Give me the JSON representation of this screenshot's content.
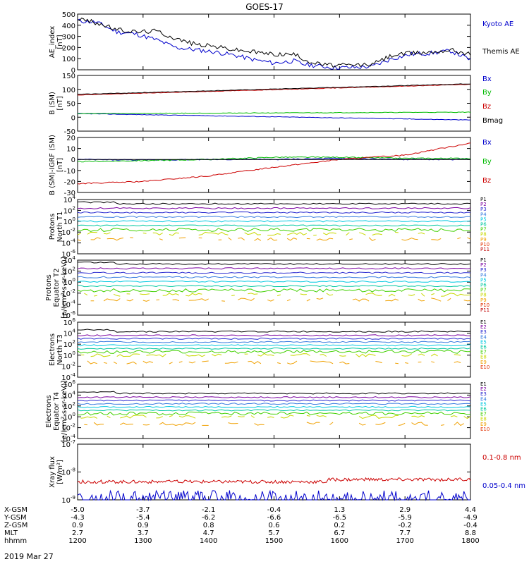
{
  "title": "GOES-17",
  "date_label": "2019 Mar 27",
  "footer_rows": [
    {
      "label": "X-GSM",
      "values": [
        "-5.0",
        "-3.7",
        "-2.1",
        "-0.4",
        "1.3",
        "2.9",
        "4.4"
      ]
    },
    {
      "label": "Y-GSM",
      "values": [
        "-4.3",
        "-5.4",
        "-6.2",
        "-6.6",
        "-6.5",
        "-5.9",
        "-4.9"
      ]
    },
    {
      "label": "Z-GSM",
      "values": [
        "0.9",
        "0.9",
        "0.8",
        "0.6",
        "0.2",
        "-0.2",
        "-0.4"
      ]
    },
    {
      "label": "MLT",
      "values": [
        "2.7",
        "3.7",
        "4.7",
        "5.7",
        "6.7",
        "7.7",
        "8.8"
      ]
    },
    {
      "label": "hhmm",
      "values": [
        "1200",
        "1300",
        "1400",
        "1500",
        "1600",
        "1700",
        "1800"
      ]
    }
  ],
  "colors": {
    "axes": "#000000",
    "black": "#000000",
    "blue": "#0000cc",
    "green": "#00bb00",
    "red": "#cc0000",
    "channels": [
      "#000000",
      "#7a00a0",
      "#2a2ad0",
      "#3a7ee0",
      "#00c8e0",
      "#00c8a0",
      "#40d000",
      "#c8d800",
      "#f0a000",
      "#e03000",
      "#c00000"
    ]
  },
  "chart_data": [
    {
      "id": "ae",
      "type": "line",
      "ylabel": "AE_index\n[nT]",
      "ylim": [
        0,
        500
      ],
      "yticks": [
        0,
        100,
        200,
        300,
        400,
        500
      ],
      "x_range": [
        "1200",
        "1800"
      ],
      "series": [
        {
          "name": "Kyoto AE",
          "color": "blue",
          "x": [
            0,
            30,
            60,
            90,
            120,
            150,
            180,
            210,
            240,
            270,
            300,
            330,
            345,
            360,
            390,
            420,
            450,
            480,
            510,
            540,
            570,
            600
          ],
          "y": [
            440,
            425,
            340,
            320,
            270,
            200,
            180,
            160,
            130,
            90,
            60,
            80,
            50,
            40,
            20,
            20,
            30,
            100,
            140,
            150,
            170,
            90
          ]
        },
        {
          "name": "Themis AE",
          "color": "black",
          "x": [
            0,
            30,
            60,
            90,
            120,
            150,
            180,
            210,
            240,
            270,
            300,
            330,
            345,
            360,
            390,
            420,
            450,
            480,
            510,
            540,
            570,
            600
          ],
          "y": [
            460,
            420,
            360,
            340,
            350,
            280,
            230,
            210,
            180,
            160,
            140,
            140,
            100,
            60,
            40,
            40,
            50,
            130,
            150,
            160,
            180,
            140
          ]
        }
      ]
    },
    {
      "id": "b_sm",
      "type": "line",
      "ylabel": "B (SM)\n[nT]",
      "ylim": [
        -50,
        150
      ],
      "yticks": [
        -50,
        0,
        50,
        100,
        150
      ],
      "series": [
        {
          "name": "Bx",
          "color": "blue",
          "x": [
            0,
            600
          ],
          "y": [
            13,
            -10
          ]
        },
        {
          "name": "By",
          "color": "green",
          "x": [
            0,
            600
          ],
          "y": [
            13,
            18
          ]
        },
        {
          "name": "Bz",
          "color": "red",
          "x": [
            0,
            600
          ],
          "y": [
            80,
            118
          ]
        },
        {
          "name": "Bmag",
          "color": "black",
          "x": [
            0,
            600
          ],
          "y": [
            82,
            120
          ]
        }
      ]
    },
    {
      "id": "b_igrf",
      "type": "line",
      "ylabel": "B (SM)-IGRF (SM)\n[nT]",
      "ylim": [
        -30,
        20
      ],
      "yticks": [
        -30,
        -20,
        -10,
        0,
        10,
        20
      ],
      "series": [
        {
          "name": "Bx",
          "color": "blue",
          "x": [
            0,
            100,
            200,
            300,
            400,
            500,
            600
          ],
          "y": [
            0,
            -0.5,
            0,
            0,
            1,
            0,
            0
          ]
        },
        {
          "name": "By",
          "color": "green",
          "x": [
            0,
            100,
            200,
            300,
            400,
            500,
            600
          ],
          "y": [
            -2,
            -1,
            0,
            2,
            2,
            1,
            1
          ]
        },
        {
          "name": "Bz",
          "color": "red",
          "x": [
            0,
            100,
            200,
            300,
            400,
            500,
            600
          ],
          "y": [
            -22,
            -20,
            -15,
            -7,
            0,
            4,
            15
          ]
        }
      ]
    },
    {
      "id": "p_north",
      "type": "line",
      "ylabel": "Protons\nNorth T1",
      "log": true,
      "ylim_exp": [
        -6,
        4
      ],
      "ytick_exps": [
        -6,
        -4,
        -2,
        0,
        2,
        4
      ],
      "legend": [
        "P1",
        "P2",
        "P3",
        "P4",
        "P5",
        "P6",
        "P7",
        "P8",
        "P9",
        "P10",
        "P11"
      ],
      "channel_levels_exp": [
        3.2,
        2.4,
        1.6,
        0.8,
        0,
        -0.8,
        -1.6,
        -2.3,
        -3.3,
        null,
        null
      ]
    },
    {
      "id": "p_eq",
      "type": "line",
      "ylabel": "Protons\nEquator T2\n[p/(cm²-s-sr-keV)]",
      "log": true,
      "ylim_exp": [
        -6,
        4
      ],
      "ytick_exps": [
        -6,
        -4,
        -2,
        0,
        2,
        4
      ],
      "legend": [
        "P1",
        "P2",
        "P3",
        "P4",
        "P5",
        "P6",
        "P7",
        "P8",
        "P9",
        "P10",
        "P11"
      ],
      "channel_levels_exp": [
        3.3,
        2.5,
        1.7,
        0.9,
        0.1,
        -0.7,
        -1.5,
        -2.3,
        -3.2,
        null,
        null
      ]
    },
    {
      "id": "e_north",
      "type": "line",
      "ylabel": "Electrons\nNorth T3",
      "log": true,
      "ylim_exp": [
        -4,
        6
      ],
      "ytick_exps": [
        -4,
        -2,
        0,
        2,
        4,
        6
      ],
      "legend": [
        "E1",
        "E2",
        "E3",
        "E4",
        "E5",
        "E6",
        "E7",
        "E8",
        "E9",
        "E10"
      ],
      "channel_levels_exp": [
        4.3,
        3.6,
        3.0,
        2.4,
        1.8,
        1.2,
        0.6,
        0,
        -1.3,
        null
      ]
    },
    {
      "id": "e_eq",
      "type": "line",
      "ylabel": "Electrons\nEquator T4\n[e/(cm²-s-sr-keV)]",
      "log": true,
      "ylim_exp": [
        -4,
        6
      ],
      "ytick_exps": [
        -4,
        -2,
        0,
        2,
        4,
        6
      ],
      "legend": [
        "E1",
        "E2",
        "E3",
        "E4",
        "E5",
        "E6",
        "E7",
        "E8",
        "E9",
        "E10"
      ],
      "channel_levels_exp": [
        4.3,
        3.6,
        3.0,
        2.4,
        1.8,
        1.2,
        0.6,
        0,
        -1.3,
        null
      ]
    },
    {
      "id": "xray",
      "type": "line",
      "ylabel": "Xray flux\n[W/m²]",
      "log": true,
      "ylim_exp": [
        -9,
        -7
      ],
      "ytick_exps": [
        -9,
        -8,
        -7
      ],
      "series": [
        {
          "name": "0.1-0.8 nm",
          "color": "red",
          "level_exp": -8.35
        },
        {
          "name": "0.05-0.4 nm",
          "color": "blue",
          "level_exp": -8.9
        }
      ]
    }
  ]
}
